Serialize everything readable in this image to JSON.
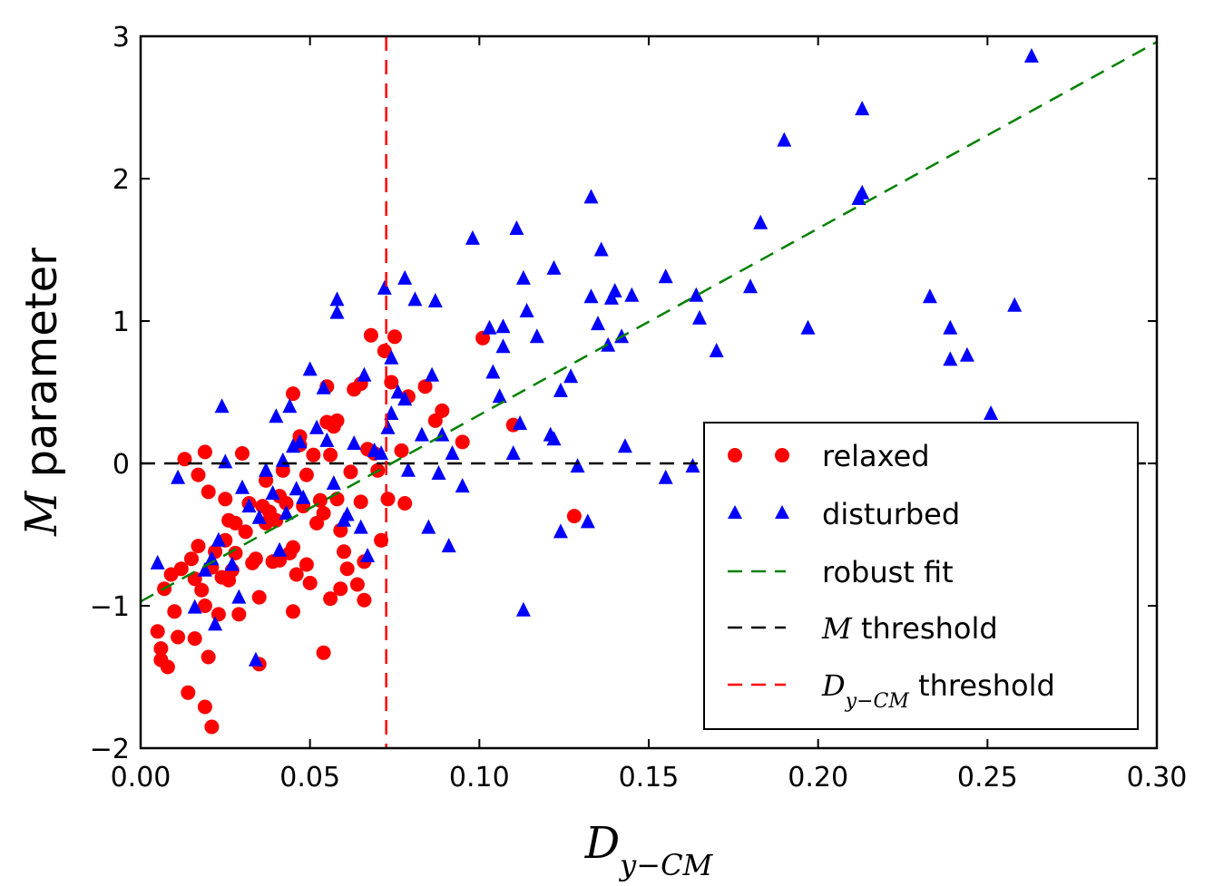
{
  "chart_data": {
    "type": "scatter",
    "title": "",
    "xlabel": "D",
    "xlabel_sub": "y−CM",
    "ylabel_italic": "M",
    "ylabel_rest": " parameter",
    "xlim": [
      0.0,
      0.3
    ],
    "ylim": [
      -2,
      3
    ],
    "xticks": [
      0.0,
      0.05,
      0.1,
      0.15,
      0.2,
      0.25,
      0.3
    ],
    "xtick_labels": [
      "0.00",
      "0.05",
      "0.10",
      "0.15",
      "0.20",
      "0.25",
      "0.30"
    ],
    "yticks": [
      -2,
      -1,
      0,
      1,
      2,
      3
    ],
    "ytick_labels": [
      "−2",
      "−1",
      "0",
      "1",
      "2",
      "3"
    ],
    "grid": false,
    "legend_position": "lower-right",
    "legend": [
      {
        "label": "relaxed",
        "type": "circle",
        "color": "#ff0000"
      },
      {
        "label": "disturbed",
        "type": "triangle",
        "color": "#0000ff"
      },
      {
        "label": "robust fit",
        "type": "dashed",
        "color": "#008000"
      },
      {
        "label": " threshold",
        "italic_prefix": "M",
        "type": "dashed",
        "color": "#000000"
      },
      {
        "label": " threshold",
        "italic_prefix": "D",
        "sub": "y−CM",
        "type": "dashed",
        "color": "#ff0000"
      }
    ],
    "lines": {
      "robust_fit": {
        "intercept": -0.97,
        "slope": 13.1,
        "color": "#008000"
      },
      "m_threshold": {
        "y": 0.0,
        "color": "#000000"
      },
      "d_threshold": {
        "x": 0.0725,
        "color": "#ff0000"
      }
    },
    "series": [
      {
        "name": "relaxed",
        "marker": "circle",
        "color": "#ff0000",
        "points": [
          [
            0.005,
            -1.18
          ],
          [
            0.006,
            -1.3
          ],
          [
            0.006,
            -1.38
          ],
          [
            0.007,
            -0.88
          ],
          [
            0.008,
            -1.43
          ],
          [
            0.009,
            -0.78
          ],
          [
            0.01,
            -1.04
          ],
          [
            0.011,
            -1.22
          ],
          [
            0.012,
            -0.74
          ],
          [
            0.013,
            0.03
          ],
          [
            0.014,
            -1.61
          ],
          [
            0.015,
            -0.67
          ],
          [
            0.016,
            -1.23
          ],
          [
            0.016,
            -0.81
          ],
          [
            0.017,
            -0.58
          ],
          [
            0.017,
            -0.08
          ],
          [
            0.018,
            -0.89
          ],
          [
            0.019,
            0.08
          ],
          [
            0.019,
            -1.0
          ],
          [
            0.019,
            -1.71
          ],
          [
            0.02,
            -0.2
          ],
          [
            0.02,
            -1.36
          ],
          [
            0.021,
            -0.73
          ],
          [
            0.021,
            -1.85
          ],
          [
            0.022,
            -0.62
          ],
          [
            0.023,
            -1.06
          ],
          [
            0.024,
            -0.8
          ],
          [
            0.025,
            -0.54
          ],
          [
            0.025,
            -0.25
          ],
          [
            0.026,
            -0.4
          ],
          [
            0.026,
            -0.82
          ],
          [
            0.027,
            -0.75
          ],
          [
            0.028,
            -0.63
          ],
          [
            0.028,
            -0.42
          ],
          [
            0.029,
            -1.06
          ],
          [
            0.03,
            0.07
          ],
          [
            0.031,
            -0.48
          ],
          [
            0.032,
            -0.28
          ],
          [
            0.033,
            -0.7
          ],
          [
            0.034,
            -0.67
          ],
          [
            0.035,
            -0.94
          ],
          [
            0.035,
            -1.41
          ],
          [
            0.036,
            -0.3
          ],
          [
            0.037,
            -0.12
          ],
          [
            0.037,
            -0.42
          ],
          [
            0.038,
            -0.34
          ],
          [
            0.039,
            -0.69
          ],
          [
            0.04,
            -0.4
          ],
          [
            0.041,
            -0.23
          ],
          [
            0.041,
            -0.68
          ],
          [
            0.042,
            -0.05
          ],
          [
            0.043,
            -0.28
          ],
          [
            0.044,
            -0.63
          ],
          [
            0.045,
            -0.59
          ],
          [
            0.045,
            0.49
          ],
          [
            0.045,
            -1.04
          ],
          [
            0.046,
            -0.78
          ],
          [
            0.047,
            0.13
          ],
          [
            0.047,
            0.19
          ],
          [
            0.048,
            -0.3
          ],
          [
            0.049,
            -0.71
          ],
          [
            0.049,
            -0.08
          ],
          [
            0.05,
            -0.84
          ],
          [
            0.051,
            0.06
          ],
          [
            0.052,
            -0.42
          ],
          [
            0.053,
            -0.26
          ],
          [
            0.054,
            -0.35
          ],
          [
            0.054,
            -1.33
          ],
          [
            0.055,
            0.29
          ],
          [
            0.055,
            0.54
          ],
          [
            0.056,
            -0.95
          ],
          [
            0.056,
            0.06
          ],
          [
            0.057,
            0.26
          ],
          [
            0.058,
            0.3
          ],
          [
            0.058,
            -0.25
          ],
          [
            0.059,
            -0.47
          ],
          [
            0.059,
            -0.88
          ],
          [
            0.06,
            -0.62
          ],
          [
            0.061,
            -0.74
          ],
          [
            0.062,
            -0.06
          ],
          [
            0.063,
            0.52
          ],
          [
            0.064,
            -0.85
          ],
          [
            0.065,
            -0.27
          ],
          [
            0.065,
            0.56
          ],
          [
            0.066,
            -0.69
          ],
          [
            0.066,
            -0.96
          ],
          [
            0.067,
            0.1
          ],
          [
            0.068,
            0.9
          ],
          [
            0.069,
            0.07
          ],
          [
            0.07,
            -0.05
          ],
          [
            0.071,
            -0.54
          ],
          [
            0.072,
            0.79
          ],
          [
            0.073,
            -0.25
          ],
          [
            0.074,
            0.57
          ],
          [
            0.075,
            0.89
          ],
          [
            0.077,
            0.09
          ],
          [
            0.078,
            -0.28
          ],
          [
            0.079,
            0.47
          ],
          [
            0.084,
            0.54
          ],
          [
            0.087,
            0.3
          ],
          [
            0.089,
            0.37
          ],
          [
            0.095,
            0.15
          ],
          [
            0.101,
            0.88
          ],
          [
            0.11,
            0.27
          ],
          [
            0.128,
            -0.37
          ]
        ]
      },
      {
        "name": "disturbed",
        "marker": "triangle",
        "color": "#0000ff",
        "points": [
          [
            0.005,
            -0.7
          ],
          [
            0.011,
            -0.1
          ],
          [
            0.016,
            -1.01
          ],
          [
            0.019,
            -0.75
          ],
          [
            0.021,
            -0.67
          ],
          [
            0.022,
            -1.13
          ],
          [
            0.023,
            -0.54
          ],
          [
            0.024,
            0.4
          ],
          [
            0.025,
            0.01
          ],
          [
            0.027,
            -0.71
          ],
          [
            0.029,
            -0.94
          ],
          [
            0.03,
            -0.17
          ],
          [
            0.032,
            -0.3
          ],
          [
            0.034,
            -1.38
          ],
          [
            0.035,
            -0.38
          ],
          [
            0.037,
            -0.05
          ],
          [
            0.039,
            -0.21
          ],
          [
            0.04,
            0.33
          ],
          [
            0.041,
            -0.61
          ],
          [
            0.042,
            0.02
          ],
          [
            0.043,
            -0.35
          ],
          [
            0.044,
            0.4
          ],
          [
            0.045,
            0.12
          ],
          [
            0.046,
            -0.18
          ],
          [
            0.047,
            0.15
          ],
          [
            0.048,
            -0.24
          ],
          [
            0.05,
            0.66
          ],
          [
            0.052,
            0.25
          ],
          [
            0.054,
            0.53
          ],
          [
            0.055,
            0.16
          ],
          [
            0.057,
            -0.14
          ],
          [
            0.058,
            1.15
          ],
          [
            0.058,
            1.06
          ],
          [
            0.06,
            -0.4
          ],
          [
            0.061,
            -0.36
          ],
          [
            0.063,
            0.14
          ],
          [
            0.065,
            -0.45
          ],
          [
            0.066,
            0.62
          ],
          [
            0.067,
            -0.65
          ],
          [
            0.069,
            0.09
          ],
          [
            0.071,
            0.07
          ],
          [
            0.072,
            1.23
          ],
          [
            0.073,
            0.25
          ],
          [
            0.074,
            0.35
          ],
          [
            0.074,
            0.74
          ],
          [
            0.076,
            0.5
          ],
          [
            0.078,
            0.45
          ],
          [
            0.078,
            1.3
          ],
          [
            0.079,
            -0.05
          ],
          [
            0.081,
            1.15
          ],
          [
            0.083,
            0.2
          ],
          [
            0.085,
            -0.45
          ],
          [
            0.086,
            0.62
          ],
          [
            0.087,
            1.14
          ],
          [
            0.088,
            -0.07
          ],
          [
            0.089,
            0.2
          ],
          [
            0.091,
            -0.58
          ],
          [
            0.092,
            0.07
          ],
          [
            0.095,
            -0.16
          ],
          [
            0.098,
            1.58
          ],
          [
            0.103,
            0.95
          ],
          [
            0.104,
            0.64
          ],
          [
            0.106,
            0.47
          ],
          [
            0.107,
            0.82
          ],
          [
            0.107,
            0.96
          ],
          [
            0.11,
            0.07
          ],
          [
            0.111,
            1.65
          ],
          [
            0.112,
            0.28
          ],
          [
            0.113,
            1.3
          ],
          [
            0.114,
            1.07
          ],
          [
            0.117,
            0.89
          ],
          [
            0.121,
            0.2
          ],
          [
            0.122,
            1.37
          ],
          [
            0.122,
            0.17
          ],
          [
            0.124,
            -0.48
          ],
          [
            0.124,
            0.51
          ],
          [
            0.127,
            0.61
          ],
          [
            0.129,
            -0.02
          ],
          [
            0.132,
            -0.41
          ],
          [
            0.133,
            1.87
          ],
          [
            0.133,
            1.17
          ],
          [
            0.135,
            0.98
          ],
          [
            0.136,
            1.5
          ],
          [
            0.138,
            0.83
          ],
          [
            0.139,
            1.16
          ],
          [
            0.14,
            1.21
          ],
          [
            0.142,
            0.89
          ],
          [
            0.143,
            0.12
          ],
          [
            0.145,
            1.18
          ],
          [
            0.155,
            1.31
          ],
          [
            0.155,
            -0.1
          ],
          [
            0.163,
            -0.02
          ],
          [
            0.164,
            1.18
          ],
          [
            0.165,
            1.02
          ],
          [
            0.17,
            0.79
          ],
          [
            0.18,
            1.24
          ],
          [
            0.183,
            1.69
          ],
          [
            0.19,
            2.27
          ],
          [
            0.197,
            0.95
          ],
          [
            0.212,
            1.86
          ],
          [
            0.213,
            1.9
          ],
          [
            0.213,
            2.49
          ],
          [
            0.233,
            1.17
          ],
          [
            0.239,
            0.95
          ],
          [
            0.239,
            0.73
          ],
          [
            0.244,
            0.76
          ],
          [
            0.251,
            0.35
          ],
          [
            0.258,
            1.11
          ],
          [
            0.263,
            2.86
          ],
          [
            0.113,
            -1.03
          ]
        ]
      }
    ]
  }
}
